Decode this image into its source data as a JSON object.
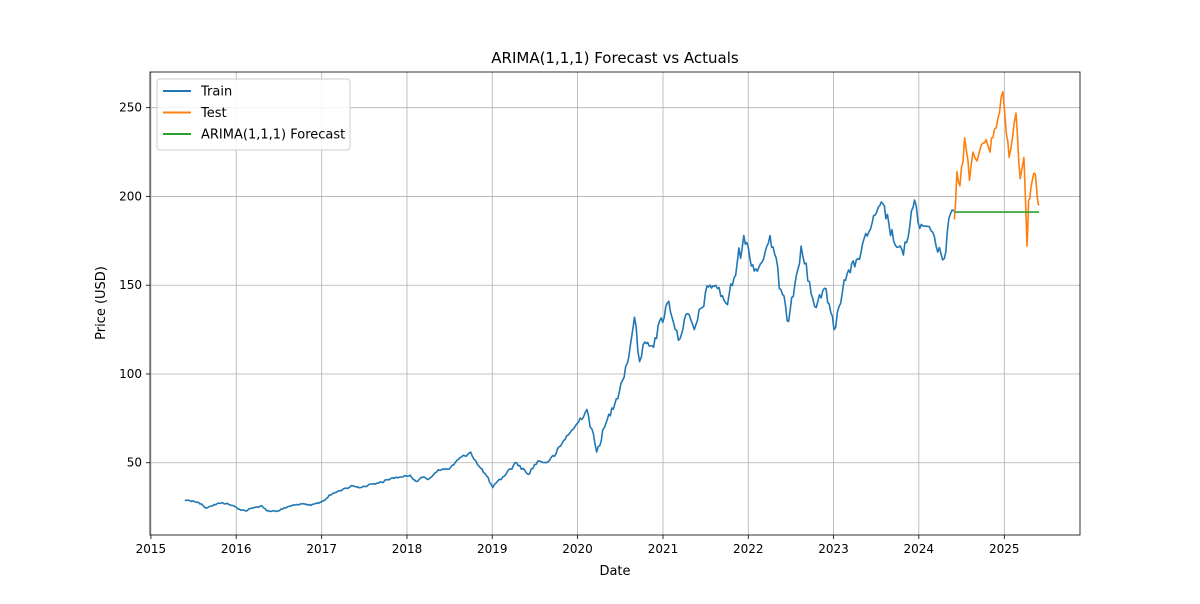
{
  "chart_data": {
    "type": "line",
    "title": "ARIMA(1,1,1) Forecast vs Actuals",
    "xlabel": "Date",
    "ylabel": "Price (USD)",
    "xlim": [
      "2014-12-28",
      "2025-11-21"
    ],
    "ylim": [
      9.3,
      270.1
    ],
    "grid": true,
    "legend_position": "upper left",
    "x_ticks": [
      {
        "date": "2015-01-01",
        "label": "2015"
      },
      {
        "date": "2016-01-01",
        "label": "2016"
      },
      {
        "date": "2017-01-01",
        "label": "2017"
      },
      {
        "date": "2018-01-01",
        "label": "2018"
      },
      {
        "date": "2019-01-01",
        "label": "2019"
      },
      {
        "date": "2020-01-01",
        "label": "2020"
      },
      {
        "date": "2021-01-01",
        "label": "2021"
      },
      {
        "date": "2022-01-01",
        "label": "2022"
      },
      {
        "date": "2023-01-01",
        "label": "2023"
      },
      {
        "date": "2024-01-01",
        "label": "2024"
      },
      {
        "date": "2025-01-01",
        "label": "2025"
      }
    ],
    "y_ticks": [
      {
        "value": 50,
        "label": "50"
      },
      {
        "value": 100,
        "label": "100"
      },
      {
        "value": 150,
        "label": "150"
      },
      {
        "value": 200,
        "label": "200"
      },
      {
        "value": 250,
        "label": "250"
      }
    ],
    "series": [
      {
        "name": "Train",
        "color": "#1f77b4",
        "points": [
          [
            "2015-05-26",
            29.0
          ],
          [
            "2015-07-01",
            28.5
          ],
          [
            "2015-08-06",
            26.8
          ],
          [
            "2015-08-24",
            24.5
          ],
          [
            "2015-09-15",
            25.6
          ],
          [
            "2015-11-01",
            27.6
          ],
          [
            "2015-12-15",
            26.0
          ],
          [
            "2016-01-15",
            23.8
          ],
          [
            "2016-02-10",
            22.9
          ],
          [
            "2016-03-15",
            24.6
          ],
          [
            "2016-04-20",
            25.8
          ],
          [
            "2016-05-10",
            23.0
          ],
          [
            "2016-06-27",
            22.8
          ],
          [
            "2016-08-15",
            25.5
          ],
          [
            "2016-10-01",
            26.8
          ],
          [
            "2016-11-15",
            26.0
          ],
          [
            "2017-01-01",
            28.0
          ],
          [
            "2017-02-15",
            32.5
          ],
          [
            "2017-04-01",
            35.0
          ],
          [
            "2017-05-15",
            37.0
          ],
          [
            "2017-06-15",
            36.0
          ],
          [
            "2017-08-01",
            38.0
          ],
          [
            "2017-09-15",
            39.0
          ],
          [
            "2017-11-01",
            41.5
          ],
          [
            "2017-12-15",
            42.0
          ],
          [
            "2018-01-15",
            43.0
          ],
          [
            "2018-02-09",
            39.5
          ],
          [
            "2018-03-15",
            42.0
          ],
          [
            "2018-04-01",
            40.5
          ],
          [
            "2018-05-15",
            46.0
          ],
          [
            "2018-07-01",
            46.5
          ],
          [
            "2018-08-10",
            52.0
          ],
          [
            "2018-10-01",
            56.0
          ],
          [
            "2018-10-30",
            49.0
          ],
          [
            "2018-12-01",
            44.0
          ],
          [
            "2019-01-03",
            36.0
          ],
          [
            "2019-02-15",
            42.0
          ],
          [
            "2019-04-15",
            50.0
          ],
          [
            "2019-06-03",
            43.5
          ],
          [
            "2019-07-15",
            51.0
          ],
          [
            "2019-08-20",
            50.0
          ],
          [
            "2019-10-01",
            55.0
          ],
          [
            "2019-11-15",
            65.0
          ],
          [
            "2019-12-15",
            69.0
          ],
          [
            "2020-02-10",
            80.0
          ],
          [
            "2020-03-23",
            56.0
          ],
          [
            "2020-05-01",
            72.0
          ],
          [
            "2020-06-15",
            86.0
          ],
          [
            "2020-08-01",
            106.0
          ],
          [
            "2020-09-01",
            132.0
          ],
          [
            "2020-09-23",
            107.0
          ],
          [
            "2020-10-15",
            118.0
          ],
          [
            "2020-11-15",
            116.0
          ],
          [
            "2021-01-26",
            141.0
          ],
          [
            "2021-03-08",
            119.0
          ],
          [
            "2021-04-15",
            134.0
          ],
          [
            "2021-05-15",
            125.0
          ],
          [
            "2021-07-15",
            149.0
          ],
          [
            "2021-08-15",
            150.0
          ],
          [
            "2021-10-04",
            139.0
          ],
          [
            "2021-12-13",
            178.0
          ],
          [
            "2022-01-27",
            158.0
          ],
          [
            "2022-03-01",
            163.0
          ],
          [
            "2022-04-04",
            178.0
          ],
          [
            "2022-06-16",
            130.0
          ],
          [
            "2022-08-15",
            172.0
          ],
          [
            "2022-10-12",
            138.0
          ],
          [
            "2022-11-30",
            148.0
          ],
          [
            "2023-01-03",
            125.0
          ],
          [
            "2023-02-15",
            153.0
          ],
          [
            "2023-04-15",
            165.0
          ],
          [
            "2023-06-15",
            185.0
          ],
          [
            "2023-07-31",
            196.0
          ],
          [
            "2023-09-15",
            175.0
          ],
          [
            "2023-10-27",
            167.0
          ],
          [
            "2023-12-14",
            198.0
          ],
          [
            "2024-01-05",
            182.0
          ],
          [
            "2024-02-15",
            183.0
          ],
          [
            "2024-03-15",
            172.0
          ],
          [
            "2024-04-19",
            165.0
          ],
          [
            "2024-05-15",
            190.0
          ],
          [
            "2024-05-31",
            192.0
          ]
        ]
      },
      {
        "name": "Test",
        "color": "#ff7f0e",
        "points": [
          [
            "2024-06-01",
            187.0
          ],
          [
            "2024-06-12",
            214.0
          ],
          [
            "2024-06-25",
            206.0
          ],
          [
            "2024-07-15",
            233.0
          ],
          [
            "2024-08-05",
            209.0
          ],
          [
            "2024-08-20",
            225.0
          ],
          [
            "2024-09-06",
            220.0
          ],
          [
            "2024-09-25",
            229.0
          ],
          [
            "2024-10-15",
            232.0
          ],
          [
            "2024-11-01",
            225.0
          ],
          [
            "2024-11-20",
            238.0
          ],
          [
            "2024-12-26",
            259.0
          ],
          [
            "2025-01-10",
            235.0
          ],
          [
            "2025-01-22",
            222.0
          ],
          [
            "2025-02-05",
            233.0
          ],
          [
            "2025-02-20",
            247.0
          ],
          [
            "2025-03-10",
            210.0
          ],
          [
            "2025-03-26",
            222.0
          ],
          [
            "2025-04-08",
            172.0
          ],
          [
            "2025-04-15",
            198.0
          ],
          [
            "2025-04-25",
            205.0
          ],
          [
            "2025-05-07",
            213.0
          ],
          [
            "2025-05-14",
            212.0
          ],
          [
            "2025-05-22",
            200.0
          ],
          [
            "2025-05-30",
            195.0
          ]
        ]
      },
      {
        "name": "ARIMA(1,1,1) Forecast",
        "color": "#2ca02c",
        "points": [
          [
            "2024-06-01",
            191.2
          ],
          [
            "2025-05-30",
            191.2
          ]
        ]
      }
    ]
  }
}
